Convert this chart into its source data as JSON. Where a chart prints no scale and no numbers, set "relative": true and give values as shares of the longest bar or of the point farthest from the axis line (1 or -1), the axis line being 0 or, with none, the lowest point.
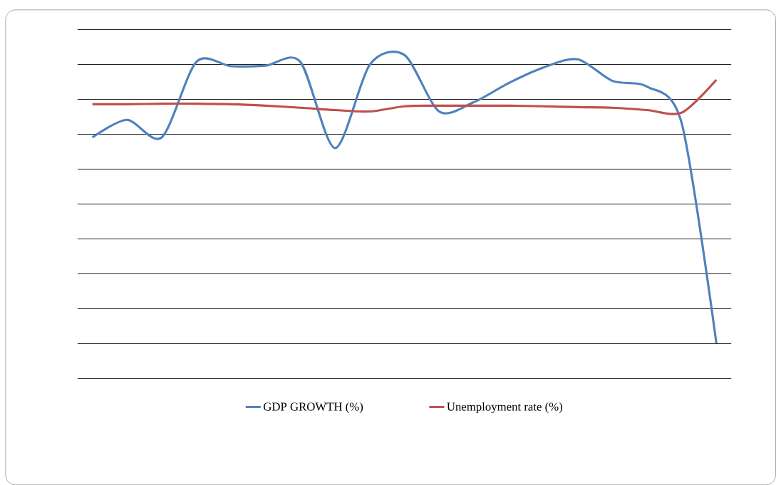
{
  "chart_data": {
    "type": "line",
    "relative": true,
    "grid": true,
    "legend": "bottom",
    "marker": "none",
    "line_style": "solid",
    "categories": [
      null,
      null,
      null,
      null,
      null,
      null,
      null,
      null,
      null,
      null,
      null,
      null,
      null,
      null,
      null,
      null,
      null,
      null,
      null
    ],
    "series": [
      {
        "name": "GDP GROWTH (%)",
        "color": "#4f81bd",
        "values": [
          0.714,
          0.775,
          0.714,
          0.976,
          0.961,
          0.963,
          0.976,
          0.677,
          0.966,
          1,
          0.804,
          0.836,
          0.902,
          0.956,
          0.985,
          0.91,
          0.89,
          0.763,
          0
        ]
      },
      {
        "name": "Unemployment rate (%)",
        "color": "#c0504d",
        "values": [
          0.829,
          0.829,
          0.831,
          0.831,
          0.829,
          0.824,
          0.817,
          0.809,
          0.804,
          0.822,
          0.824,
          0.824,
          0.824,
          0.822,
          0.819,
          0.817,
          0.809,
          0.8,
          0.914
        ]
      }
    ]
  }
}
